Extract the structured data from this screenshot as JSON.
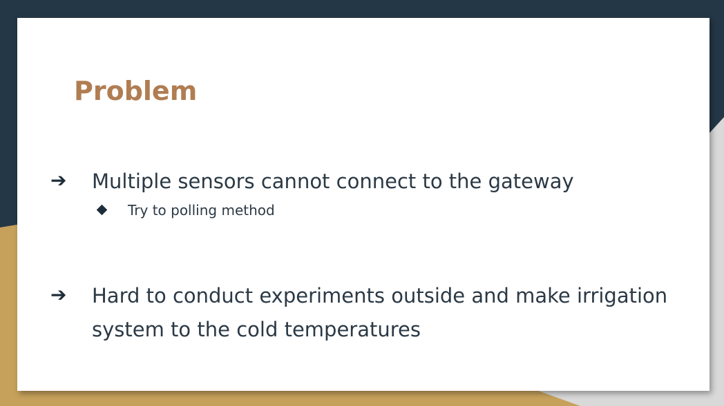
{
  "slide": {
    "title": "Problem",
    "colors": {
      "navy": "#243746",
      "gold": "#c6a15b",
      "title": "#b07d52",
      "text": "#2b3945"
    },
    "bullets": [
      {
        "icon": "arrow-right-icon",
        "lines": [
          "Multiple sensors cannot connect to the gateway"
        ],
        "sub_bullets": [
          {
            "icon": "diamond-bullet-icon",
            "text": "Try to polling method"
          }
        ]
      },
      {
        "icon": "arrow-right-icon",
        "lines": [
          "Hard to conduct experiments outside and make irrigation",
          "system to the cold temperatures"
        ],
        "sub_bullets": []
      }
    ]
  }
}
